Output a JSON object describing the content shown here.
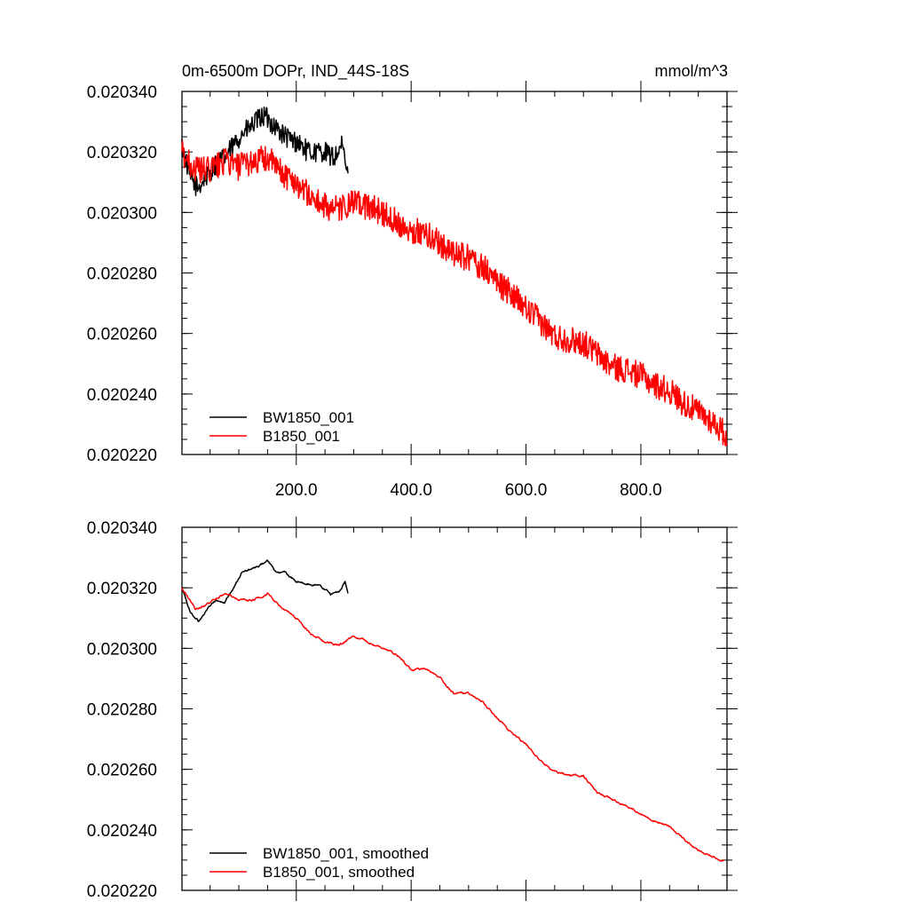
{
  "chart_data": [
    {
      "type": "line",
      "title": "0m-6500m DOPr, IND_44S-18S",
      "units": "mmol/m^3",
      "xlim": [
        1,
        950
      ],
      "ylim": [
        0.02022,
        0.02034
      ],
      "x_ticks": [
        200,
        400,
        600,
        800
      ],
      "x_tick_labels": [
        "200.0",
        "400.0",
        "600.0",
        "800.0"
      ],
      "y_ticks": [
        0.02022,
        0.02024,
        0.02026,
        0.02028,
        0.0203,
        0.02032,
        0.02034
      ],
      "y_tick_labels": [
        "0.020220",
        "0.020240",
        "0.020260",
        "0.020280",
        "0.020300",
        "0.020320",
        "0.020340"
      ],
      "legend_position": "bottom-left",
      "series": [
        {
          "name": "BW1850_001",
          "color": "#000000",
          "x": [
            1,
            15,
            28,
            45,
            60,
            75,
            90,
            105,
            120,
            135,
            145,
            160,
            175,
            190,
            205,
            220,
            235,
            250,
            265,
            280,
            290
          ],
          "y": [
            0.020322,
            0.020312,
            0.020308,
            0.020312,
            0.020316,
            0.020318,
            0.020322,
            0.020326,
            0.020328,
            0.020331,
            0.020332,
            0.020329,
            0.020326,
            0.020324,
            0.020323,
            0.02032,
            0.02032,
            0.02032,
            0.020318,
            0.020322,
            0.020312
          ],
          "noise_amplitude": 3.5e-06
        },
        {
          "name": "B1850_001",
          "color": "#ff0000",
          "x": [
            1,
            25,
            50,
            75,
            100,
            125,
            150,
            175,
            200,
            225,
            250,
            275,
            300,
            325,
            350,
            375,
            400,
            425,
            450,
            475,
            500,
            525,
            550,
            575,
            600,
            625,
            650,
            675,
            700,
            725,
            750,
            775,
            800,
            825,
            850,
            875,
            900,
            925,
            950
          ],
          "y": [
            0.02032,
            0.020314,
            0.020314,
            0.020317,
            0.020315,
            0.020317,
            0.020318,
            0.020313,
            0.02031,
            0.020305,
            0.020302,
            0.020301,
            0.020303,
            0.020302,
            0.0203,
            0.020297,
            0.020294,
            0.020293,
            0.02029,
            0.020286,
            0.020285,
            0.020282,
            0.020277,
            0.020273,
            0.020268,
            0.020264,
            0.020259,
            0.020258,
            0.020257,
            0.020253,
            0.020249,
            0.020248,
            0.020246,
            0.020243,
            0.020241,
            0.020237,
            0.020234,
            0.020231,
            0.020226
          ],
          "noise_amplitude": 4.5e-06
        }
      ]
    },
    {
      "type": "line",
      "title": "",
      "xlim": [
        1,
        950
      ],
      "ylim": [
        0.02022,
        0.02034
      ],
      "x_ticks": [
        200,
        400,
        600,
        800
      ],
      "x_tick_labels": [],
      "y_ticks": [
        0.02022,
        0.02024,
        0.02026,
        0.02028,
        0.0203,
        0.02032,
        0.02034
      ],
      "y_tick_labels": [
        "0.020220",
        "0.020240",
        "0.020260",
        "0.020280",
        "0.020300",
        "0.020320",
        "0.020340"
      ],
      "legend_position": "bottom-left",
      "series": [
        {
          "name": "BW1850_001, smoothed",
          "color": "#000000",
          "x": [
            1,
            15,
            30,
            45,
            60,
            75,
            90,
            105,
            120,
            135,
            150,
            165,
            180,
            200,
            220,
            240,
            260,
            275,
            285,
            290
          ],
          "y": [
            0.02032,
            0.020312,
            0.020309,
            0.020313,
            0.020316,
            0.020315,
            0.02032,
            0.020325,
            0.020326,
            0.020327,
            0.020329,
            0.020325,
            0.020325,
            0.020322,
            0.020321,
            0.020321,
            0.020318,
            0.020319,
            0.020322,
            0.020318
          ],
          "noise_amplitude": 1.2e-06
        },
        {
          "name": "B1850_001, smoothed",
          "color": "#ff0000",
          "x": [
            1,
            25,
            50,
            75,
            100,
            125,
            150,
            175,
            200,
            225,
            250,
            275,
            300,
            325,
            350,
            375,
            400,
            425,
            450,
            475,
            500,
            525,
            550,
            575,
            600,
            625,
            650,
            675,
            700,
            725,
            750,
            775,
            800,
            825,
            850,
            875,
            900,
            925,
            945
          ],
          "y": [
            0.02032,
            0.020313,
            0.020315,
            0.020318,
            0.020316,
            0.020316,
            0.020318,
            0.020313,
            0.02031,
            0.020305,
            0.020302,
            0.020301,
            0.020304,
            0.020302,
            0.0203,
            0.020298,
            0.020293,
            0.020293,
            0.02029,
            0.020285,
            0.020285,
            0.020282,
            0.020277,
            0.020272,
            0.020268,
            0.020263,
            0.020259,
            0.020258,
            0.020258,
            0.020252,
            0.02025,
            0.020248,
            0.020245,
            0.020243,
            0.020241,
            0.020237,
            0.020233,
            0.020231,
            0.02023
          ],
          "noise_amplitude": 1.2e-06
        }
      ]
    }
  ]
}
